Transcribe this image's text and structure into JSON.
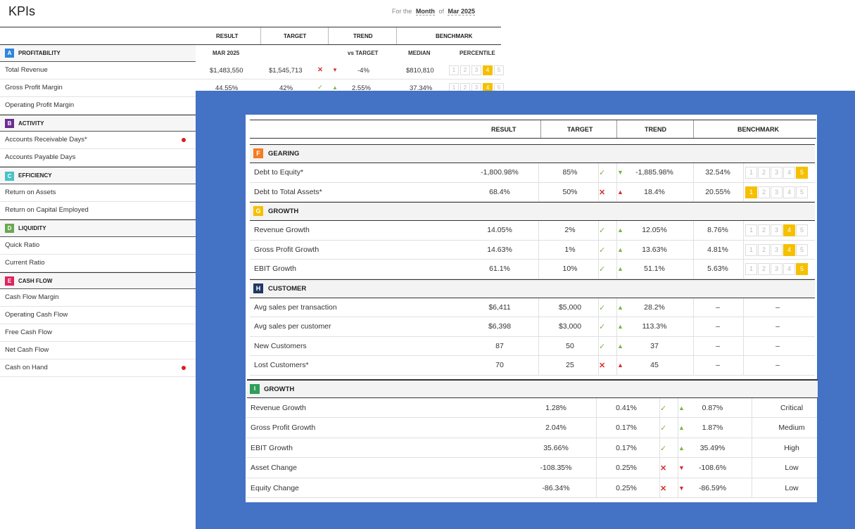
{
  "background": {
    "title": "KPIs",
    "period": {
      "prefix": "For the",
      "unit": "Month",
      "of": "of",
      "value": "Mar 2025"
    },
    "columns": {
      "result": "RESULT",
      "target": "TARGET",
      "trend": "TREND",
      "benchmark": "BENCHMARK"
    },
    "subheader": {
      "period": "MAR 2025",
      "vs_target": "vs TARGET",
      "median": "MEDIAN",
      "percentile": "PERCENTILE"
    },
    "sections": [
      {
        "badge": "A",
        "name": "PROFITABILITY",
        "color": "#2e86de",
        "rows": [
          {
            "label": "Total Revenue"
          },
          {
            "label": "Gross Profit Margin"
          },
          {
            "label": "Operating Profit Margin"
          }
        ]
      },
      {
        "badge": "B",
        "name": "ACTIVITY",
        "color": "#6a2c91",
        "rows": [
          {
            "label": "Accounts Receivable Days*",
            "flag": true
          },
          {
            "label": "Accounts Payable Days"
          }
        ]
      },
      {
        "badge": "C",
        "name": "EFFICIENCY",
        "color": "#48c2c5",
        "rows": [
          {
            "label": "Return on Assets"
          },
          {
            "label": "Return on Capital Employed"
          }
        ]
      },
      {
        "badge": "D",
        "name": "LIQUIDITY",
        "color": "#6aa84f",
        "rows": [
          {
            "label": "Quick Ratio"
          },
          {
            "label": "Current Ratio"
          }
        ]
      },
      {
        "badge": "E",
        "name": "CASH FLOW",
        "color": "#e0245e",
        "rows": [
          {
            "label": "Cash Flow Margin"
          },
          {
            "label": "Operating Cash Flow"
          },
          {
            "label": "Free Cash Flow"
          },
          {
            "label": "Net Cash Flow"
          },
          {
            "label": "Cash on Hand",
            "flag": true
          }
        ]
      }
    ],
    "detail_rows": [
      {
        "result": "$1,483,550",
        "target": "$1,545,713",
        "trend": "-4%",
        "median": "$810,810"
      },
      {
        "result": "44.55%",
        "target": "42%",
        "trend": "2.55%",
        "median": "37.34%"
      }
    ]
  },
  "card": {
    "columns": {
      "result": "RESULT",
      "target": "TARGET",
      "trend": "TREND",
      "benchmark": "BENCHMARK"
    },
    "sections": [
      {
        "badge": "F",
        "name": "GEARING",
        "color": "#f57c20",
        "rows": [
          {
            "label": "Debt to Equity*",
            "result": "-1,800.98%",
            "target": "85%",
            "status": "ok",
            "arrow": "down-good",
            "trend": "-1,885.98%",
            "median": "32.54%",
            "percentile": 5
          },
          {
            "label": "Debt to Total Assets*",
            "result": "68.4%",
            "target": "50%",
            "status": "bad",
            "arrow": "up-bad",
            "trend": "18.4%",
            "median": "20.55%",
            "percentile": 1
          }
        ]
      },
      {
        "badge": "G",
        "name": "GROWTH",
        "color": "#f5c000",
        "rows": [
          {
            "label": "Revenue Growth",
            "result": "14.05%",
            "target": "2%",
            "status": "ok",
            "arrow": "up",
            "trend": "12.05%",
            "median": "8.76%",
            "percentile": 4
          },
          {
            "label": "Gross Profit Growth",
            "result": "14.63%",
            "target": "1%",
            "status": "ok",
            "arrow": "up",
            "trend": "13.63%",
            "median": "4.81%",
            "percentile": 4
          },
          {
            "label": "EBIT Growth",
            "result": "61.1%",
            "target": "10%",
            "status": "ok",
            "arrow": "up",
            "trend": "51.1%",
            "median": "5.63%",
            "percentile": 5
          }
        ]
      },
      {
        "badge": "H",
        "name": "CUSTOMER",
        "color": "#1f3864",
        "rows": [
          {
            "label": "Avg sales per transaction",
            "result": "$6,411",
            "target": "$5,000",
            "status": "ok",
            "arrow": "up",
            "trend": "28.2%",
            "median": "–",
            "pctdash": "–"
          },
          {
            "label": "Avg sales per customer",
            "result": "$6,398",
            "target": "$3,000",
            "status": "ok",
            "arrow": "up",
            "trend": "113.3%",
            "median": "–",
            "pctdash": "–"
          },
          {
            "label": "New Customers",
            "result": "87",
            "target": "50",
            "status": "ok",
            "arrow": "up",
            "trend": "37",
            "median": "–",
            "pctdash": "–"
          },
          {
            "label": "Lost Customers*",
            "result": "70",
            "target": "25",
            "status": "bad",
            "arrow": "up-bad",
            "trend": "45",
            "median": "–",
            "pctdash": "–"
          }
        ]
      }
    ],
    "section2": {
      "badge": "I",
      "name": "GROWTH",
      "color": "#2e9e5b",
      "rows": [
        {
          "label": "Revenue Growth",
          "result": "1.28%",
          "target": "0.41%",
          "status": "ok",
          "arrow": "up",
          "trend": "0.87%",
          "level": "Critical"
        },
        {
          "label": "Gross Profit Growth",
          "result": "2.04%",
          "target": "0.17%",
          "status": "ok",
          "arrow": "up",
          "trend": "1.87%",
          "level": "Medium"
        },
        {
          "label": "EBIT Growth",
          "result": "35.66%",
          "target": "0.17%",
          "status": "ok",
          "arrow": "up",
          "trend": "35.49%",
          "level": "High"
        },
        {
          "label": "Asset Change",
          "result": "-108.35%",
          "target": "0.25%",
          "status": "bad",
          "arrow": "down",
          "trend": "-108.6%",
          "level": "Low"
        },
        {
          "label": "Equity Change",
          "result": "-86.34%",
          "target": "0.25%",
          "status": "bad",
          "arrow": "down",
          "trend": "-86.59%",
          "level": "Low"
        }
      ]
    }
  },
  "icons": {
    "check": "check-icon",
    "cross": "cross-icon",
    "up": "triangle-up-icon",
    "down": "triangle-down-icon",
    "flag": "red-dot-icon"
  }
}
